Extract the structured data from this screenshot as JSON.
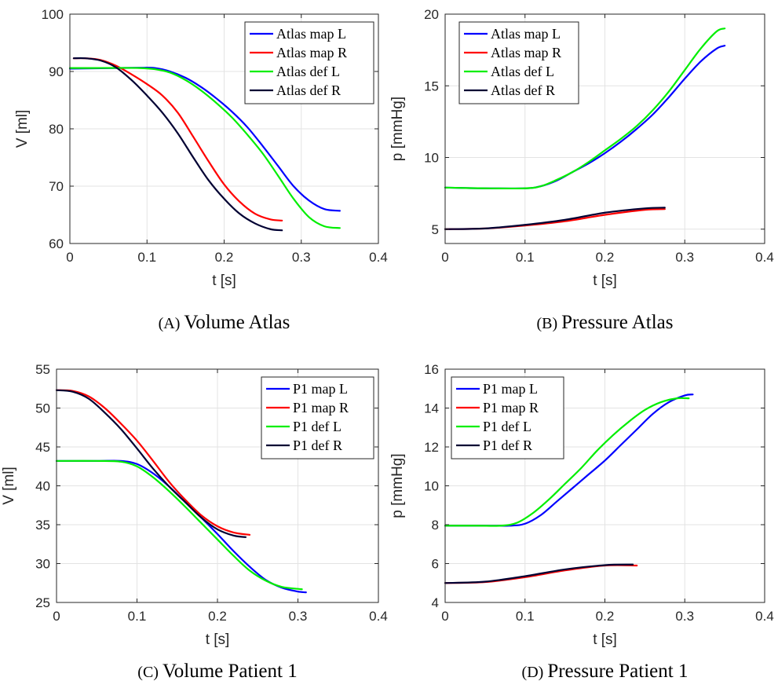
{
  "chart_data": [
    {
      "type": "line",
      "caption_label": "(A)",
      "caption_text": "Volume Atlas",
      "xlabel": "t [s]",
      "ylabel": "V [ml]",
      "xlim": [
        0,
        0.4
      ],
      "ylim": [
        60,
        100
      ],
      "xticks": [
        0,
        0.1,
        0.2,
        0.3,
        0.4
      ],
      "xtick_labels": [
        "0",
        "0.1",
        "0.2",
        "0.3",
        "0.4"
      ],
      "yticks": [
        60,
        70,
        80,
        90,
        100
      ],
      "ytick_labels": [
        "60",
        "70",
        "80",
        "90",
        "100"
      ],
      "grid": true,
      "legend_position": "top-right",
      "series": [
        {
          "name": "Atlas map L",
          "color": "#0000ff",
          "x": [
            0,
            0.03,
            0.06,
            0.09,
            0.11,
            0.13,
            0.15,
            0.17,
            0.19,
            0.21,
            0.23,
            0.25,
            0.27,
            0.29,
            0.31,
            0.33,
            0.35
          ],
          "y": [
            90.5,
            90.55,
            90.6,
            90.65,
            90.6,
            90,
            88.9,
            87.3,
            85.3,
            83,
            80.3,
            77,
            73.5,
            70,
            67.5,
            66,
            65.7
          ]
        },
        {
          "name": "Atlas map R",
          "color": "#ff0000",
          "x": [
            0.005,
            0.02,
            0.04,
            0.06,
            0.08,
            0.1,
            0.12,
            0.14,
            0.16,
            0.18,
            0.2,
            0.22,
            0.24,
            0.26,
            0.275
          ],
          "y": [
            92.3,
            92.3,
            92,
            91,
            89.5,
            87.8,
            85.8,
            82.8,
            78.6,
            74.3,
            70.3,
            67.3,
            65.2,
            64.2,
            64
          ]
        },
        {
          "name": "Atlas def L",
          "color": "#00ee00",
          "x": [
            0,
            0.03,
            0.06,
            0.09,
            0.11,
            0.13,
            0.15,
            0.17,
            0.19,
            0.21,
            0.23,
            0.25,
            0.27,
            0.29,
            0.31,
            0.33,
            0.35
          ],
          "y": [
            90.6,
            90.6,
            90.62,
            90.6,
            90.4,
            89.8,
            88.5,
            86.7,
            84.5,
            82,
            79,
            75.7,
            71.8,
            67.8,
            64.6,
            63,
            62.7
          ]
        },
        {
          "name": "Atlas def R",
          "color": "#000033",
          "x": [
            0.005,
            0.02,
            0.04,
            0.06,
            0.08,
            0.1,
            0.12,
            0.14,
            0.16,
            0.18,
            0.2,
            0.22,
            0.24,
            0.26,
            0.275
          ],
          "y": [
            92.3,
            92.3,
            91.9,
            90.7,
            88.5,
            85.8,
            82.8,
            79.2,
            75,
            71,
            67.8,
            65.2,
            63.5,
            62.5,
            62.3
          ]
        }
      ]
    },
    {
      "type": "line",
      "caption_label": "(B)",
      "caption_text": "Pressure Atlas",
      "xlabel": "t [s]",
      "ylabel": "p [mmHg]",
      "xlim": [
        0,
        0.4
      ],
      "ylim": [
        4,
        20
      ],
      "xticks": [
        0,
        0.1,
        0.2,
        0.3,
        0.4
      ],
      "xtick_labels": [
        "0",
        "0.1",
        "0.2",
        "0.3",
        "0.4"
      ],
      "yticks": [
        5,
        10,
        15,
        20
      ],
      "ytick_labels": [
        "5",
        "10",
        "15",
        "20"
      ],
      "grid": true,
      "legend_position": "top-right",
      "series": [
        {
          "name": "Atlas map L",
          "color": "#0000ff",
          "x": [
            0,
            0.05,
            0.1,
            0.12,
            0.14,
            0.16,
            0.18,
            0.2,
            0.22,
            0.24,
            0.26,
            0.28,
            0.3,
            0.32,
            0.34,
            0.35
          ],
          "y": [
            7.9,
            7.85,
            7.85,
            8,
            8.4,
            9,
            9.6,
            10.3,
            11.1,
            12,
            13,
            14.2,
            15.5,
            16.7,
            17.6,
            17.8
          ]
        },
        {
          "name": "Atlas map R",
          "color": "#ff0000",
          "x": [
            0,
            0.05,
            0.1,
            0.15,
            0.2,
            0.25,
            0.275
          ],
          "y": [
            5,
            5.05,
            5.25,
            5.55,
            6,
            6.35,
            6.4
          ]
        },
        {
          "name": "Atlas def L",
          "color": "#00ee00",
          "x": [
            0,
            0.05,
            0.1,
            0.12,
            0.14,
            0.16,
            0.18,
            0.2,
            0.22,
            0.24,
            0.26,
            0.28,
            0.3,
            0.32,
            0.34,
            0.35
          ],
          "y": [
            7.9,
            7.85,
            7.85,
            8,
            8.45,
            9,
            9.7,
            10.5,
            11.3,
            12.2,
            13.3,
            14.6,
            16.1,
            17.6,
            18.8,
            19
          ]
        },
        {
          "name": "Atlas def R",
          "color": "#000033",
          "x": [
            0,
            0.05,
            0.1,
            0.15,
            0.2,
            0.25,
            0.275
          ],
          "y": [
            5,
            5.05,
            5.3,
            5.65,
            6.15,
            6.45,
            6.5
          ]
        }
      ]
    },
    {
      "type": "line",
      "caption_label": "(C)",
      "caption_text": "Volume Patient 1",
      "xlabel": "t [s]",
      "ylabel": "V [ml]",
      "xlim": [
        0,
        0.4
      ],
      "ylim": [
        25,
        55
      ],
      "xticks": [
        0,
        0.1,
        0.2,
        0.3,
        0.4
      ],
      "xtick_labels": [
        "0",
        "0.1",
        "0.2",
        "0.3",
        "0.4"
      ],
      "yticks": [
        25,
        30,
        35,
        40,
        45,
        50,
        55
      ],
      "ytick_labels": [
        "25",
        "30",
        "35",
        "40",
        "45",
        "50",
        "55"
      ],
      "grid": true,
      "legend_position": "top-right",
      "series": [
        {
          "name": "P1 map L",
          "color": "#0000ff",
          "x": [
            0,
            0.05,
            0.08,
            0.1,
            0.12,
            0.14,
            0.16,
            0.18,
            0.2,
            0.22,
            0.24,
            0.26,
            0.28,
            0.3,
            0.31
          ],
          "y": [
            43.2,
            43.2,
            43.2,
            42.8,
            41.6,
            39.9,
            37.9,
            35.9,
            33.8,
            31.6,
            29.6,
            27.9,
            26.9,
            26.4,
            26.3
          ]
        },
        {
          "name": "P1 map R",
          "color": "#ff0000",
          "x": [
            0,
            0.02,
            0.04,
            0.06,
            0.08,
            0.1,
            0.12,
            0.14,
            0.16,
            0.18,
            0.2,
            0.22,
            0.24
          ],
          "y": [
            52.3,
            52.2,
            51.5,
            50,
            48,
            45.8,
            43.2,
            40.5,
            38.2,
            36.2,
            34.8,
            34,
            33.7
          ]
        },
        {
          "name": "P1 def L",
          "color": "#00ee00",
          "x": [
            0,
            0.05,
            0.08,
            0.1,
            0.12,
            0.14,
            0.16,
            0.18,
            0.2,
            0.22,
            0.24,
            0.26,
            0.28,
            0.3,
            0.305
          ],
          "y": [
            43.2,
            43.2,
            43.1,
            42.5,
            41.1,
            39.3,
            37.3,
            35.2,
            33.1,
            31,
            29.1,
            27.8,
            27,
            26.75,
            26.7
          ]
        },
        {
          "name": "P1 def R",
          "color": "#000033",
          "x": [
            0,
            0.02,
            0.04,
            0.06,
            0.08,
            0.1,
            0.12,
            0.14,
            0.16,
            0.18,
            0.2,
            0.22,
            0.235
          ],
          "y": [
            52.3,
            52.1,
            51.2,
            49.4,
            47.3,
            44.8,
            42.2,
            39.9,
            37.9,
            35.9,
            34.4,
            33.6,
            33.4
          ]
        }
      ]
    },
    {
      "type": "line",
      "caption_label": "(D)",
      "caption_text": "Pressure Patient 1",
      "xlabel": "t [s]",
      "ylabel": "p [mmHg]",
      "xlim": [
        0,
        0.4
      ],
      "ylim": [
        4,
        16
      ],
      "xticks": [
        0,
        0.1,
        0.2,
        0.3,
        0.4
      ],
      "xtick_labels": [
        "0",
        "0.1",
        "0.2",
        "0.3",
        "0.4"
      ],
      "yticks": [
        4,
        6,
        8,
        10,
        12,
        14,
        16
      ],
      "ytick_labels": [
        "4",
        "6",
        "8",
        "10",
        "12",
        "14",
        "16"
      ],
      "grid": true,
      "legend_position": "top-left",
      "series": [
        {
          "name": "P1 map L",
          "color": "#0000ff",
          "x": [
            0,
            0.04,
            0.08,
            0.1,
            0.12,
            0.14,
            0.16,
            0.18,
            0.2,
            0.22,
            0.24,
            0.26,
            0.28,
            0.3,
            0.31
          ],
          "y": [
            7.95,
            7.95,
            7.95,
            8.05,
            8.5,
            9.2,
            9.9,
            10.6,
            11.3,
            12.1,
            12.9,
            13.7,
            14.3,
            14.65,
            14.7
          ]
        },
        {
          "name": "P1 map R",
          "color": "#ff0000",
          "x": [
            0,
            0.05,
            0.1,
            0.15,
            0.2,
            0.24
          ],
          "y": [
            5,
            5.05,
            5.3,
            5.65,
            5.9,
            5.9
          ]
        },
        {
          "name": "P1 def L",
          "color": "#00ee00",
          "x": [
            0,
            0.04,
            0.07,
            0.09,
            0.11,
            0.13,
            0.15,
            0.17,
            0.19,
            0.21,
            0.23,
            0.25,
            0.27,
            0.29,
            0.305
          ],
          "y": [
            7.95,
            7.95,
            7.95,
            8.1,
            8.6,
            9.3,
            10.1,
            10.9,
            11.8,
            12.6,
            13.3,
            13.9,
            14.3,
            14.5,
            14.5
          ]
        },
        {
          "name": "P1 def R",
          "color": "#000033",
          "x": [
            0,
            0.05,
            0.1,
            0.15,
            0.2,
            0.235
          ],
          "y": [
            5,
            5.07,
            5.35,
            5.7,
            5.92,
            5.95
          ]
        }
      ]
    }
  ]
}
